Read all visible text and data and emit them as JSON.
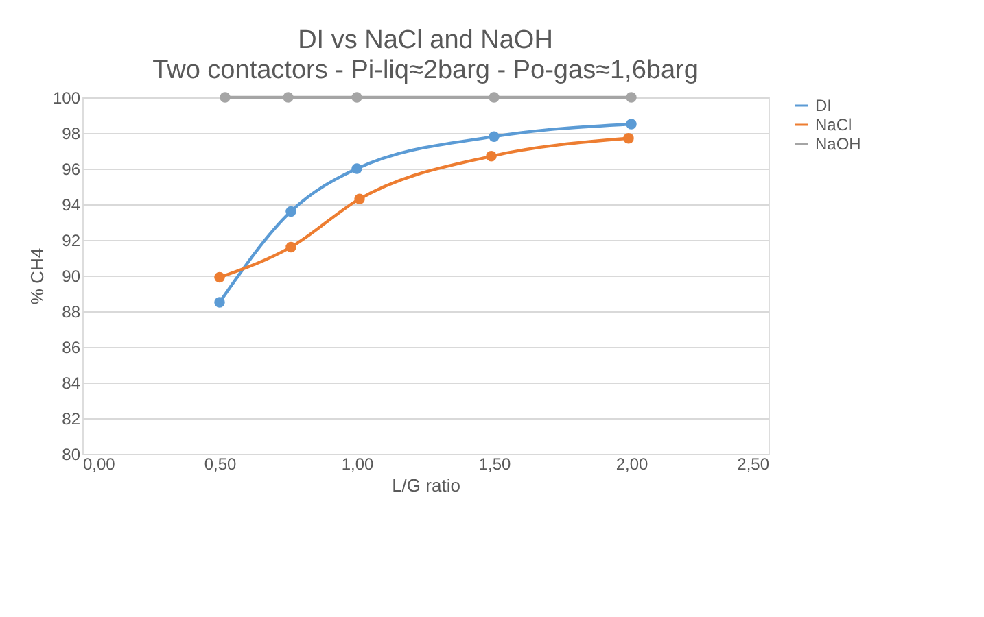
{
  "chart_data": {
    "type": "line",
    "title": "DI vs NaCl and NaOH",
    "subtitle": "Two contactors - Pi-liq≈2barg - Po-gas≈1,6barg",
    "xlabel": "L/G ratio",
    "ylabel": "% CH4",
    "series": [
      {
        "name": "DI",
        "color": "#5b9bd5",
        "x": [
          0.5,
          0.76,
          1.0,
          1.5,
          2.0
        ],
        "values": [
          88.5,
          93.6,
          96.0,
          97.8,
          98.5
        ]
      },
      {
        "name": "NaCl",
        "color": "#ed7d31",
        "x": [
          0.5,
          0.76,
          1.01,
          1.49,
          1.99
        ],
        "values": [
          89.9,
          91.6,
          94.3,
          96.7,
          97.7
        ]
      },
      {
        "name": "NaOH",
        "color": "#a5a5a5",
        "x": [
          0.52,
          0.75,
          1.0,
          1.5,
          2.0
        ],
        "values": [
          100,
          100,
          100,
          100,
          100
        ]
      }
    ],
    "xlim": [
      0,
      2.5
    ],
    "xticks": [
      {
        "value": 0,
        "label": "0,00"
      },
      {
        "value": 0.5,
        "label": "0,50"
      },
      {
        "value": 1,
        "label": "1,00"
      },
      {
        "value": 1.5,
        "label": "1,50"
      },
      {
        "value": 2,
        "label": "2,00"
      },
      {
        "value": 2.5,
        "label": "2,50"
      }
    ],
    "ylim": [
      80,
      100
    ],
    "yticks": [
      80,
      82,
      84,
      86,
      88,
      90,
      92,
      94,
      96,
      98,
      100
    ],
    "grid": "y",
    "legend": "right",
    "marker": "circle",
    "line_style": "solid"
  }
}
